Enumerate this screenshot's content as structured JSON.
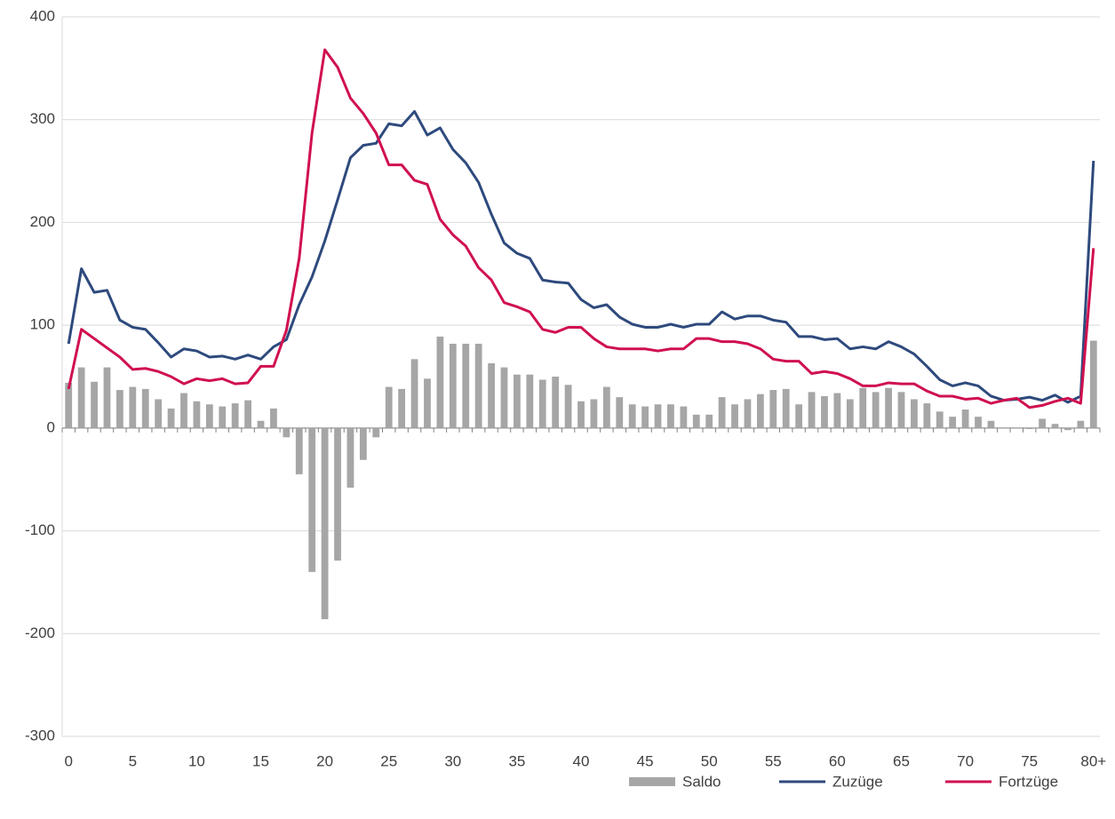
{
  "chart_data": {
    "type": "bar-line",
    "categories": [
      "0",
      null,
      null,
      null,
      null,
      "5",
      null,
      null,
      null,
      null,
      "10",
      null,
      null,
      null,
      null,
      "15",
      null,
      null,
      null,
      null,
      "20",
      null,
      null,
      null,
      null,
      "25",
      null,
      null,
      null,
      null,
      "30",
      null,
      null,
      null,
      null,
      "35",
      null,
      null,
      null,
      null,
      "40",
      null,
      null,
      null,
      null,
      "45",
      null,
      null,
      null,
      null,
      "50",
      null,
      null,
      null,
      null,
      "55",
      null,
      null,
      null,
      null,
      "60",
      null,
      null,
      null,
      null,
      "65",
      null,
      null,
      null,
      null,
      "70",
      null,
      null,
      null,
      null,
      "75",
      null,
      null,
      null,
      null,
      "80+"
    ],
    "series": [
      {
        "name": "Saldo",
        "kind": "bar",
        "color": "#a6a6a6",
        "values": [
          44,
          59,
          45,
          59,
          37,
          40,
          38,
          28,
          19,
          34,
          26,
          23,
          21,
          24,
          27,
          7,
          19,
          -9,
          -45,
          -140,
          -186,
          -129,
          -58,
          -31,
          -9,
          40,
          38,
          67,
          48,
          89,
          82,
          82,
          82,
          63,
          59,
          52,
          52,
          47,
          50,
          42,
          26,
          28,
          40,
          30,
          23,
          21,
          23,
          23,
          21,
          13,
          13,
          30,
          23,
          28,
          33,
          37,
          38,
          23,
          35,
          31,
          34,
          28,
          39,
          35,
          39,
          35,
          28,
          24,
          16,
          11,
          18,
          11,
          7,
          0,
          0,
          -1,
          9,
          4,
          -2,
          7,
          85
        ]
      },
      {
        "name": "Zuzüge",
        "kind": "line",
        "color": "#2e4a7d",
        "values": [
          82,
          155,
          132,
          134,
          105,
          98,
          96,
          83,
          69,
          77,
          75,
          69,
          70,
          67,
          71,
          67,
          79,
          86,
          120,
          147,
          182,
          222,
          263,
          275,
          277,
          296,
          294,
          308,
          285,
          292,
          271,
          258,
          239,
          208,
          180,
          170,
          165,
          144,
          142,
          141,
          125,
          117,
          120,
          108,
          101,
          98,
          98,
          101,
          98,
          101,
          101,
          113,
          106,
          109,
          109,
          105,
          103,
          89,
          89,
          86,
          87,
          77,
          79,
          77,
          84,
          79,
          72,
          60,
          47,
          41,
          44,
          41,
          31,
          27,
          28,
          30,
          27,
          32,
          25,
          31,
          260
        ]
      },
      {
        "name": "Fortzüge",
        "kind": "line",
        "color": "#d0104f",
        "values": [
          38,
          96,
          87,
          78,
          69,
          57,
          58,
          55,
          50,
          43,
          48,
          46,
          48,
          43,
          44,
          60,
          60,
          95,
          165,
          287,
          368,
          351,
          321,
          306,
          287,
          256,
          256,
          241,
          237,
          203,
          188,
          177,
          156,
          144,
          122,
          118,
          113,
          96,
          93,
          98,
          98,
          87,
          79,
          77,
          77,
          77,
          75,
          77,
          77,
          87,
          87,
          84,
          84,
          82,
          77,
          67,
          65,
          65,
          53,
          55,
          53,
          48,
          41,
          41,
          44,
          43,
          43,
          36,
          31,
          31,
          28,
          29,
          24,
          27,
          29,
          20,
          22,
          26,
          29,
          24,
          175
        ]
      }
    ],
    "ylim": [
      -300,
      400
    ],
    "yticks": [
      -300,
      -200,
      -100,
      0,
      100,
      200,
      300,
      400
    ],
    "grid": true
  }
}
